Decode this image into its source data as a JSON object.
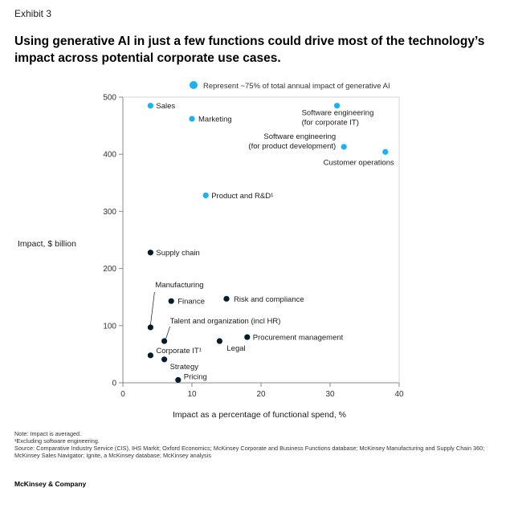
{
  "exhibit_label": "Exhibit 3",
  "title": "Using generative AI in just a few functions could drive most of the technology’s impact across potential corporate use cases.",
  "chart_data": {
    "type": "scatter",
    "title": "",
    "xlabel": "Impact as a percentage of functional spend, %",
    "ylabel": "Impact, $ billion",
    "xlim": [
      0,
      40
    ],
    "ylim": [
      0,
      500
    ],
    "x_ticks": [
      0,
      10,
      20,
      30,
      40
    ],
    "y_ticks": [
      0,
      100,
      200,
      300,
      400,
      500
    ],
    "grid": false,
    "legend": {
      "position": "top",
      "label": "Represent ~75% of total annual impact of generative AI",
      "color": "#1ab2f0"
    },
    "colors": {
      "highlight": "#1ab2f0",
      "other": "#051c2c",
      "axis": "#888888"
    },
    "points": [
      {
        "name": "Sales",
        "x": 4,
        "y": 485,
        "highlight": true
      },
      {
        "name": "Marketing",
        "x": 10,
        "y": 462,
        "highlight": true
      },
      {
        "name": "Software engineering (for corporate IT)",
        "label_lines": [
          "Software engineering",
          "(for corporate IT)"
        ],
        "x": 31,
        "y": 485,
        "highlight": true
      },
      {
        "name": "Software engineering (for product development)",
        "label_lines": [
          "Software engineering",
          "(for product development)"
        ],
        "x": 32,
        "y": 413,
        "highlight": true
      },
      {
        "name": "Customer operations",
        "x": 38,
        "y": 404,
        "highlight": true
      },
      {
        "name": "Product and R&D¹",
        "x": 12,
        "y": 328,
        "highlight": true
      },
      {
        "name": "Supply chain",
        "x": 4,
        "y": 228,
        "highlight": false
      },
      {
        "name": "Manufacturing",
        "x": 4,
        "y": 97,
        "highlight": false
      },
      {
        "name": "Finance",
        "x": 7,
        "y": 143,
        "highlight": false
      },
      {
        "name": "Risk and compliance",
        "x": 15,
        "y": 147,
        "highlight": false
      },
      {
        "name": "Talent and organization (incl HR)",
        "x": 6,
        "y": 73,
        "highlight": false
      },
      {
        "name": "Legal",
        "x": 14,
        "y": 73,
        "highlight": false
      },
      {
        "name": "Procurement management",
        "x": 18,
        "y": 80,
        "highlight": false
      },
      {
        "name": "Corporate IT¹",
        "x": 4,
        "y": 48,
        "highlight": false
      },
      {
        "name": "Strategy",
        "x": 6,
        "y": 41,
        "highlight": false
      },
      {
        "name": "Pricing",
        "x": 8,
        "y": 5,
        "highlight": false
      }
    ]
  },
  "footnotes": {
    "note": "Note: Impact is averaged.",
    "note1": "¹Excluding software engineering.",
    "source": "Source: Comparative Industry Service (CIS), IHS Markit; Oxford Economics; McKinsey Corporate and Business Functions database; McKinsey Manufacturing and Supply Chain 360; McKinsey Sales Navigator; Ignite, a McKinsey database; McKinsey analysis"
  },
  "brand": "McKinsey & Company"
}
